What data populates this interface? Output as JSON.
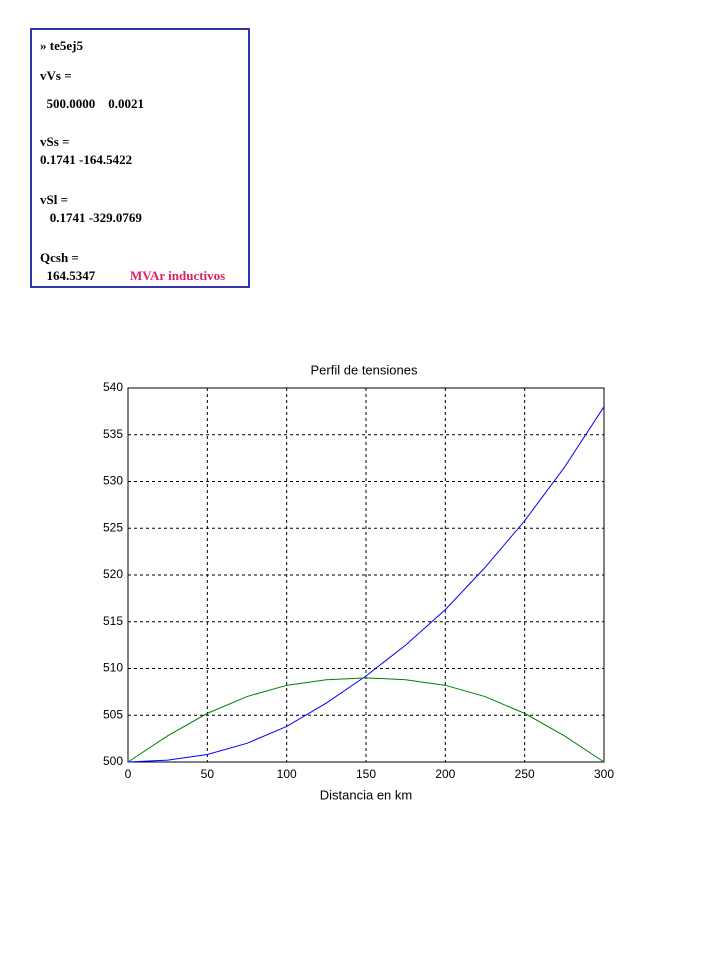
{
  "console": {
    "lines": [
      "» te5ej5",
      "vVs =",
      "  500.0000    0.0021",
      "vSs =",
      "0.1741 -164.5422",
      "vSl =",
      "   0.1741 -329.0769",
      "Qcsh =",
      "  164.5347"
    ],
    "note": "MVAr inductivos"
  },
  "chart_data": {
    "type": "line",
    "title": "Perfil de tensiones",
    "x_label": "Distancia en km",
    "x": [
      0,
      25,
      50,
      75,
      100,
      125,
      150,
      175,
      200,
      225,
      250,
      275,
      300
    ],
    "series": [
      {
        "color": "#0000ff",
        "values": [
          500,
          500.2,
          500.8,
          502,
          503.8,
          506.3,
          509.2,
          512.5,
          516.3,
          520.8,
          525.8,
          531.5,
          538
        ]
      },
      {
        "color": "#008000",
        "values": [
          500,
          502.8,
          505.2,
          507,
          508.2,
          508.8,
          509,
          508.8,
          508.2,
          507,
          505.2,
          502.8,
          500
        ]
      }
    ],
    "xlim": [
      0,
      300
    ],
    "xticks": [
      0,
      50,
      100,
      150,
      200,
      250,
      300
    ],
    "ylim": [
      500,
      540
    ],
    "yticks": [
      500,
      505,
      510,
      515,
      520,
      525,
      530,
      535,
      540
    ],
    "grid": true
  }
}
